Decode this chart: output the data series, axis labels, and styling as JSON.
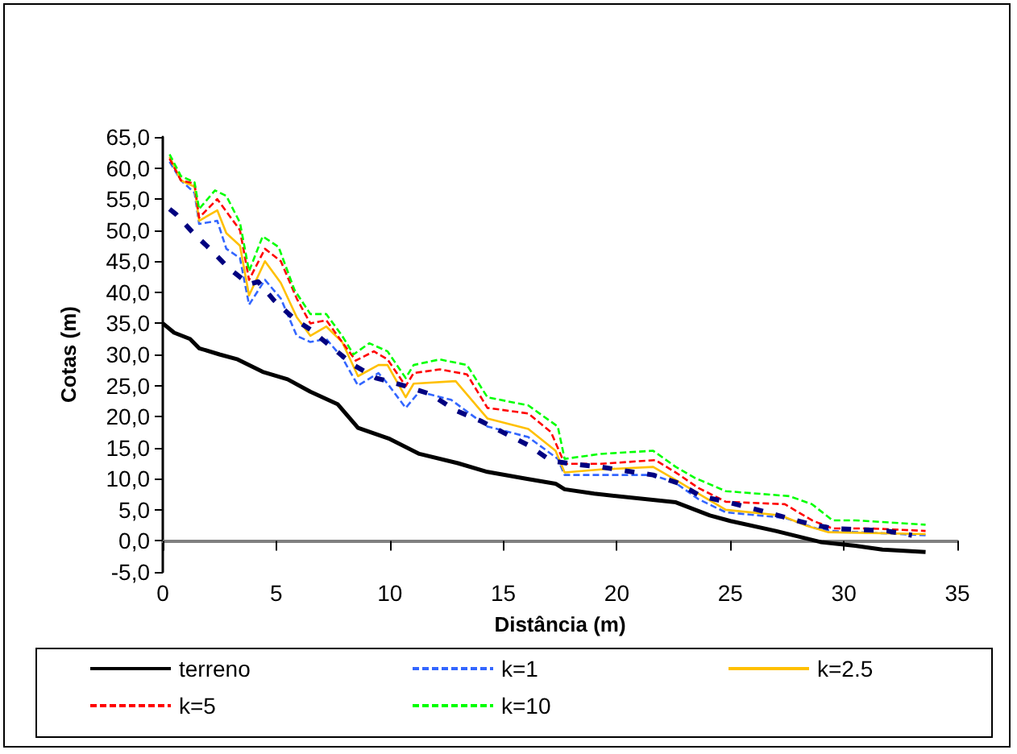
{
  "chart_data": {
    "type": "line",
    "xlabel": "Distância (m)",
    "ylabel": "Cotas (m)",
    "xlim": [
      0,
      35
    ],
    "xticks": [
      0,
      5,
      10,
      15,
      20,
      25,
      30,
      35
    ],
    "ylim": [
      -5,
      65
    ],
    "yticks": [
      {
        "value": -5,
        "label": "-5,0"
      },
      {
        "value": 0,
        "label": "0,0"
      },
      {
        "value": 5,
        "label": "5,0"
      },
      {
        "value": 10,
        "label": "10,0"
      },
      {
        "value": 15,
        "label": "15,0"
      },
      {
        "value": 20,
        "label": "20,0"
      },
      {
        "value": 25,
        "label": "25,0"
      },
      {
        "value": 30,
        "label": "30,0"
      },
      {
        "value": 35,
        "label": "35,0"
      },
      {
        "value": 40,
        "label": "40,0"
      },
      {
        "value": 45,
        "label": "45,0"
      },
      {
        "value": 50,
        "label": "50,0"
      },
      {
        "value": 55,
        "label": "55,0"
      },
      {
        "value": 60,
        "label": "60,0"
      },
      {
        "value": 65,
        "label": "65,0"
      }
    ],
    "grid": false,
    "legend": "bottom",
    "marker": "none",
    "series": [
      {
        "name": "terreno",
        "color": "#000000",
        "line_style": "solid",
        "x": [
          0,
          0.5,
          1.2,
          1.6,
          2.5,
          3.3,
          4.4,
          5.5,
          6.5,
          7.7,
          8.6,
          10,
          11.3,
          13,
          14.3,
          16,
          17.3,
          17.7,
          19,
          22.6,
          24.1,
          25,
          27,
          29,
          30.5,
          31.7,
          33.6
        ],
        "values": [
          35,
          33.5,
          32.5,
          31,
          30,
          29.2,
          27.2,
          26,
          24,
          22,
          18.2,
          16.4,
          14,
          12.5,
          11.1,
          10,
          9.2,
          8.3,
          7.6,
          6.2,
          4.1,
          3.2,
          1.6,
          -0.2,
          -0.8,
          -1.4,
          -1.8
        ]
      },
      {
        "name": "k=1",
        "color": "#3366ff",
        "line_style": "dashed",
        "x": [
          0.3,
          0.8,
          1.4,
          1.6,
          2.4,
          2.8,
          3.4,
          3.8,
          4.5,
          5.2,
          5.9,
          6.5,
          7.2,
          7.9,
          8.6,
          9.5,
          9.9,
          10.7,
          11.3,
          12.7,
          14.3,
          16.1,
          17.4,
          17.7,
          19.3,
          21.6,
          22.6,
          23.6,
          24.8,
          27.4,
          28.8,
          29.5,
          33.6
        ],
        "values": [
          61,
          58,
          56,
          51,
          51.5,
          47,
          45.5,
          38,
          42,
          39,
          33,
          32,
          32.5,
          29.5,
          25,
          27,
          25.3,
          21.4,
          24,
          22.7,
          18.4,
          16.7,
          13.2,
          10.6,
          10.6,
          10.6,
          9.3,
          6.7,
          4.6,
          3.7,
          2,
          1.6,
          0.9
        ]
      },
      {
        "name": "k=2.5",
        "color": "#ffc000",
        "line_style": "solid",
        "x": [
          0.3,
          0.8,
          1.4,
          1.6,
          2.4,
          2.8,
          3.4,
          3.8,
          4.5,
          5.2,
          5.9,
          6.5,
          7.2,
          7.9,
          8.6,
          9.5,
          9.9,
          10.7,
          11.05,
          12.9,
          14.3,
          16.1,
          17.3,
          17.7,
          19.3,
          21.6,
          22.6,
          23.6,
          24.8,
          27.2,
          28.4,
          29.3,
          33.6
        ],
        "values": [
          61.8,
          58,
          57,
          51.5,
          53.2,
          49.5,
          47.5,
          39.5,
          45,
          41.5,
          36,
          33,
          34.5,
          32,
          26.5,
          28.3,
          28.3,
          23.1,
          25.3,
          25.7,
          19.7,
          18,
          14.5,
          11,
          11.5,
          11.9,
          9.8,
          7.6,
          5,
          4.1,
          2.4,
          1.4,
          1.1
        ]
      },
      {
        "name": "k=5",
        "color": "#ff0000",
        "line_style": "dashed",
        "x": [
          0.3,
          0.8,
          1.4,
          1.6,
          2.4,
          2.8,
          3.4,
          3.8,
          4.5,
          5.2,
          5.9,
          6.5,
          7.2,
          7.9,
          8.5,
          9.3,
          9.9,
          10.7,
          11.05,
          12.2,
          13.4,
          14.3,
          16.1,
          17.1,
          17.7,
          19.3,
          21.7,
          22.6,
          23.6,
          24.8,
          27.4,
          28.6,
          29.5,
          31.2,
          33.6
        ],
        "values": [
          61.5,
          58,
          57.5,
          52,
          55,
          53,
          50,
          42,
          47,
          45,
          39,
          35,
          35.5,
          32,
          29,
          30.5,
          29.2,
          24.9,
          27,
          27.6,
          26.8,
          21.4,
          20.5,
          17.5,
          12.4,
          12.4,
          13,
          11,
          8.5,
          6.3,
          5.9,
          3.3,
          2,
          2,
          1.6
        ]
      },
      {
        "name": "k=10",
        "color": "#00ff00",
        "line_style": "dashed",
        "x": [
          0.3,
          0.8,
          1.4,
          1.6,
          2.3,
          2.8,
          3.4,
          3.8,
          4.4,
          5.1,
          5.8,
          6.5,
          7.2,
          7.9,
          8.4,
          9.1,
          9.9,
          10.7,
          11.05,
          12.2,
          13.4,
          14.3,
          16.1,
          17.4,
          17.7,
          19.3,
          21.6,
          22.6,
          23.4,
          24.8,
          27.6,
          28.6,
          29.5,
          30.5,
          33.6
        ],
        "values": [
          62.2,
          58.7,
          57.7,
          53.4,
          56.4,
          55.5,
          51.2,
          43.4,
          49,
          47.3,
          40.4,
          36.5,
          36.5,
          33,
          30,
          31.8,
          30.5,
          26.2,
          28.3,
          29.2,
          28.3,
          23.1,
          21.8,
          18.4,
          13.2,
          14,
          14.5,
          11.9,
          10.2,
          8,
          7.2,
          5.9,
          3.3,
          3.3,
          2.6
        ]
      },
      {
        "color": "#000080",
        "line_style": "dashed",
        "x": [
          0.3,
          0.6,
          1.35,
          2.1,
          2.9,
          3.8,
          4.2,
          4.9,
          5.8,
          6.5,
          7.5,
          8.4,
          9.4,
          10.7,
          11.8,
          12.9,
          14,
          16.1,
          17.1,
          18,
          19.3,
          20.5,
          21.6,
          22.7,
          23.7,
          24.8,
          26.2,
          28.4,
          29.5,
          31.9,
          33
        ],
        "values": [
          53.4,
          52.5,
          49.5,
          46.9,
          43.9,
          41.3,
          41.7,
          38.7,
          35.7,
          34,
          31,
          28.3,
          26.2,
          24.9,
          23.6,
          21,
          19.3,
          15.4,
          12.9,
          12.4,
          11.9,
          11.2,
          10.6,
          9.3,
          7.2,
          6.3,
          5,
          2.8,
          2,
          1.6,
          0.9
        ]
      }
    ]
  }
}
